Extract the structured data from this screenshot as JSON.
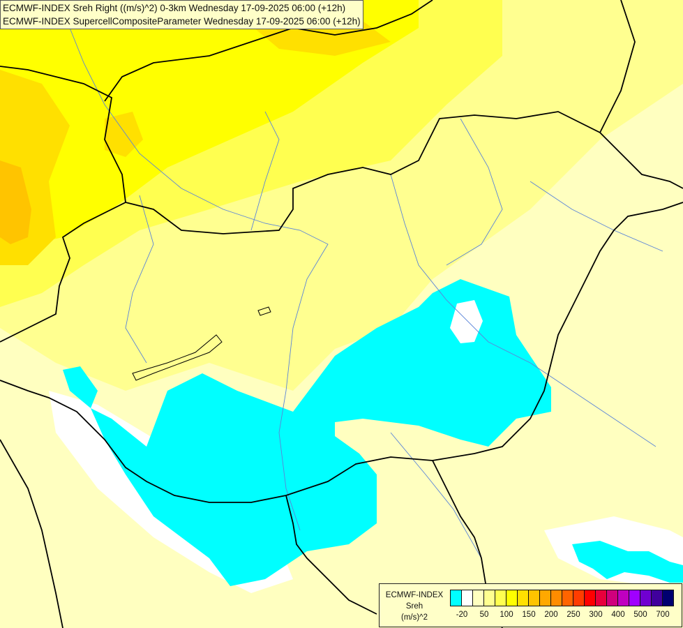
{
  "titles": [
    "ECMWF-INDEX Sreh Right ((m/s)^2) 0-3km Wednesday 17-09-2025 06:00 (+12h)",
    "ECMWF-INDEX SupercellCompositeParameter Wednesday 17-09-2025 06:00 (+12h)"
  ],
  "legend": {
    "line1": "ECMWF-INDEX",
    "line2": "Sreh",
    "line3": "(m/s)^2",
    "colors": [
      "#00ffff",
      "#ffffff",
      "#ffffc0",
      "#ffff90",
      "#ffff50",
      "#ffff00",
      "#ffe000",
      "#ffc400",
      "#ffa800",
      "#ff8c00",
      "#ff6400",
      "#ff3c00",
      "#ff0000",
      "#e8003c",
      "#d0007c",
      "#c000c0",
      "#a000ff",
      "#7000d0",
      "#40009c",
      "#000070"
    ],
    "labels": [
      "-20",
      "50",
      "100",
      "150",
      "200",
      "250",
      "300",
      "400",
      "500",
      "700"
    ]
  }
}
